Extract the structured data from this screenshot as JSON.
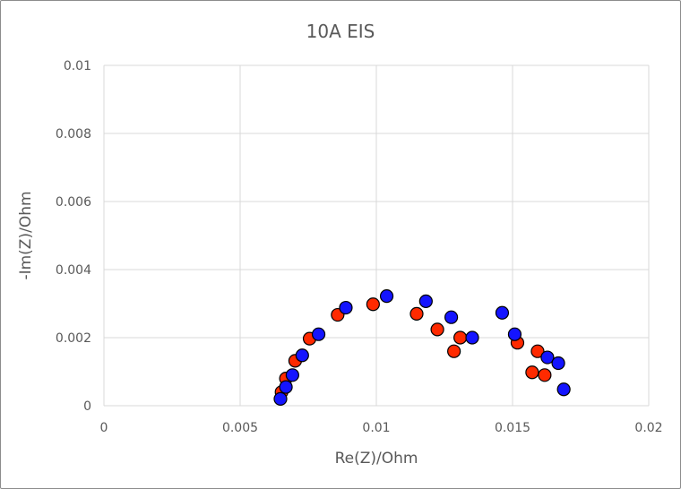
{
  "chart_data": {
    "type": "scatter",
    "title": "10A EIS",
    "xlabel": "Re(Z)/Ohm",
    "ylabel": "-Im(Z)/Ohm",
    "xlim": [
      0,
      0.02
    ],
    "ylim": [
      0,
      0.01
    ],
    "x_ticks": [
      "0",
      "0.005",
      "0.01",
      "0.015",
      "0.02"
    ],
    "y_ticks": [
      "0",
      "0.002",
      "0.004",
      "0.006",
      "0.008",
      "0.01"
    ],
    "grid": true,
    "legend": "none",
    "series": [
      {
        "color": "#ff2a00",
        "points": [
          [
            0.00652,
            0.0004
          ],
          [
            0.00668,
            0.0008
          ],
          [
            0.00702,
            0.00132
          ],
          [
            0.00755,
            0.00197
          ],
          [
            0.00858,
            0.00267
          ],
          [
            0.00988,
            0.00298
          ],
          [
            0.01148,
            0.0027
          ],
          [
            0.01224,
            0.00224
          ],
          [
            0.01285,
            0.0016
          ],
          [
            0.01308,
            0.002
          ],
          [
            0.01518,
            0.00185
          ],
          [
            0.01572,
            0.00098
          ],
          [
            0.01592,
            0.0016
          ],
          [
            0.01618,
            0.0009
          ]
        ]
      },
      {
        "color": "#1414ff",
        "points": [
          [
            0.00648,
            0.0002
          ],
          [
            0.00668,
            0.00055
          ],
          [
            0.00692,
            0.0009
          ],
          [
            0.00728,
            0.00148
          ],
          [
            0.00788,
            0.0021
          ],
          [
            0.00888,
            0.00288
          ],
          [
            0.01038,
            0.00322
          ],
          [
            0.01182,
            0.00307
          ],
          [
            0.01275,
            0.0026
          ],
          [
            0.01352,
            0.002
          ],
          [
            0.01462,
            0.00273
          ],
          [
            0.01508,
            0.0021
          ],
          [
            0.01628,
            0.00142
          ],
          [
            0.01668,
            0.00125
          ],
          [
            0.01688,
            0.00048
          ]
        ]
      }
    ]
  }
}
